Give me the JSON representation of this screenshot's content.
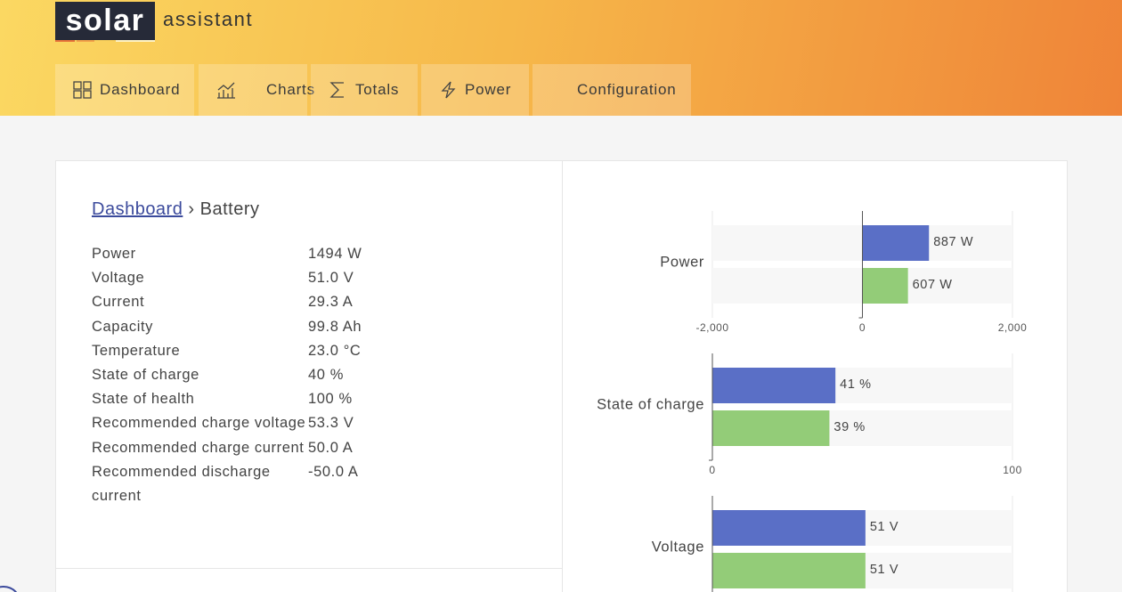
{
  "header": {
    "logo": {
      "main": "solar",
      "sub": "assistant"
    },
    "nav": [
      "Dashboard",
      "Charts",
      "Totals",
      "Power",
      "Configuration"
    ]
  },
  "breadcrumb": {
    "link": "Dashboard",
    "separator": "›",
    "current": "Battery"
  },
  "table": {
    "rows": [
      [
        "Power",
        "1494 W"
      ],
      [
        "Voltage",
        "51.0 V"
      ],
      [
        "Current",
        "29.3 A"
      ],
      [
        "Capacity",
        "99.8 Ah"
      ],
      [
        "Temperature",
        "23.0 °C"
      ],
      [
        "State of charge",
        "40 %"
      ],
      [
        "State of health",
        "100 %"
      ],
      [
        "Recommended charge voltage",
        "53.3 V"
      ],
      [
        "Recommended charge current",
        "50.0 A"
      ],
      [
        "Recommended discharge current",
        "-50.0 A"
      ]
    ]
  },
  "chart_data": [
    {
      "type": "bar",
      "orientation": "horizontal",
      "categories": [
        "Power"
      ],
      "series": [
        {
          "color": "#5a6fc6",
          "values": [
            887
          ],
          "value_labels": [
            "887 W"
          ]
        },
        {
          "color": "#93cc78",
          "values": [
            607
          ],
          "value_labels": [
            "607 W"
          ]
        }
      ],
      "xlim": [
        -2000,
        2000
      ],
      "xticks": [
        {
          "value": -2000,
          "label": "-2,000"
        },
        0,
        {
          "value": 2000,
          "label": "2,000"
        }
      ]
    },
    {
      "type": "bar",
      "orientation": "horizontal",
      "categories": [
        "State of charge"
      ],
      "series": [
        {
          "color": "#5a6fc6",
          "values": [
            41
          ],
          "value_labels": [
            "41 %"
          ]
        },
        {
          "color": "#93cc78",
          "values": [
            39
          ],
          "value_labels": [
            "39 %"
          ]
        }
      ],
      "xlim": [
        0,
        100
      ],
      "xticks": [
        0,
        100
      ]
    },
    {
      "type": "bar",
      "orientation": "horizontal",
      "categories": [
        "Voltage"
      ],
      "series": [
        {
          "color": "#5a6fc6",
          "values": [
            51
          ],
          "value_labels": [
            "51 V"
          ]
        },
        {
          "color": "#93cc78",
          "values": [
            51
          ],
          "value_labels": [
            "51 V"
          ]
        }
      ],
      "xlim": [
        0,
        100
      ]
    }
  ]
}
